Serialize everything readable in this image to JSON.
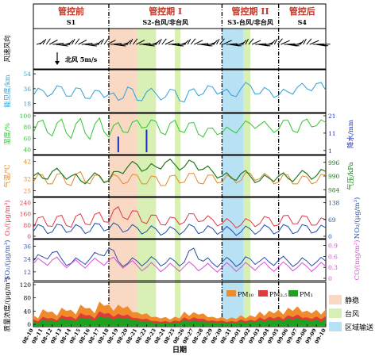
{
  "periods": [
    {
      "title": "管控前",
      "code": "S1",
      "start": 0,
      "end": 8
    },
    {
      "title": "管控期 I",
      "code": "S2-台风/非台风",
      "start": 8,
      "end": 20
    },
    {
      "title": "管控期 II",
      "code": "S3-台风/非台风",
      "start": 20,
      "end": 26
    },
    {
      "title": "管控后",
      "code": "S4",
      "start": 26,
      "end": 31
    }
  ],
  "shading": [
    {
      "type": "calm",
      "start": 8,
      "end": 11
    },
    {
      "type": "typhoon",
      "start": 11,
      "end": 13
    },
    {
      "type": "typhoon",
      "start": 15,
      "end": 15.6
    },
    {
      "type": "regional",
      "start": 20,
      "end": 22.3
    },
    {
      "type": "typhoon",
      "start": 22.3,
      "end": 23
    }
  ],
  "colors": {
    "calm": "#fad9c4",
    "typhoon": "#d9f0b4",
    "regional": "#b8e2f4",
    "wind": "#000000",
    "visibility": "#2f9fd8",
    "humidity": "#2ec72e",
    "rain": "#1a2fbf",
    "temp": "#e08a2a",
    "pressure": "#1f7a1f",
    "o3": "#e0374a",
    "no2": "#1f4fae",
    "so2": "#2b4ea8",
    "co": "#d94fd6",
    "pm10": "#f08a2a",
    "pm25": "#e03a3a",
    "pm1": "#1fa21f"
  },
  "panel_labels": {
    "wind": "风速风向",
    "wind_ref": "北风 5m/s",
    "visibility": "能见度/km",
    "humidity": "湿度/%",
    "rain": "降水/mm",
    "temp": "气温/℃",
    "pressure": "气压/kPa",
    "o3": "O₃/(μg/m³)",
    "no2": "NO₂/(μg/m³)",
    "so2": "SO₂/(μg/m³)",
    "co": "CO/(mg/m³)",
    "pm": "质量浓度/(μg/m³)",
    "xlabel": "日期"
  },
  "legend_pm": [
    "PM₁₀",
    "PM₂.₅",
    "PM₁"
  ],
  "legend_shading": [
    "静稳",
    "台风",
    "区域输送"
  ],
  "chart_data": [
    {
      "type": "line",
      "panel": "visibility",
      "ylabel": "能见度/km",
      "yticks": [
        18,
        36,
        54
      ],
      "ylim": [
        10,
        56
      ],
      "series": [
        {
          "name": "visibility",
          "values": [
            28,
            34,
            30,
            38,
            27,
            36,
            24,
            33,
            29,
            22,
            38,
            22,
            32,
            30,
            26,
            34,
            20,
            36,
            30,
            38,
            32,
            28,
            36,
            40,
            30,
            34,
            28,
            32,
            38,
            36,
            42,
            34
          ]
        }
      ]
    },
    {
      "type": "line",
      "panel": "humidity",
      "ylabel": "湿度/%",
      "yticks": [
        40,
        60,
        80,
        100
      ],
      "ylim": [
        35,
        100
      ],
      "series": [
        {
          "name": "humidity",
          "values": [
            70,
            92,
            64,
            94,
            60,
            95,
            58,
            96,
            62,
            88,
            70,
            92,
            80,
            90,
            66,
            92,
            70,
            88,
            62,
            78,
            70,
            74,
            80,
            86,
            84,
            80,
            76,
            92,
            70,
            94,
            82,
            88
          ]
        }
      ]
    },
    {
      "type": "bar",
      "panel": "rain",
      "ylabel": "降水/mm",
      "yticks": [
        1,
        11,
        21
      ],
      "ylim": [
        0,
        21
      ],
      "series": [
        {
          "name": "rain",
          "values": [
            0,
            0,
            0,
            0,
            0,
            0,
            0,
            0,
            0,
            9,
            0,
            0,
            13,
            0,
            0,
            0,
            0,
            0,
            0,
            0,
            0,
            0,
            0,
            0,
            0,
            0,
            0,
            0,
            0,
            0,
            0,
            0
          ]
        }
      ]
    },
    {
      "type": "line",
      "panel": "temp",
      "ylabel": "气温/℃",
      "yticks": [
        25,
        32,
        42
      ],
      "ylim": [
        23,
        44
      ],
      "series": [
        {
          "name": "temp",
          "values": [
            30,
            34,
            29,
            35,
            28,
            36,
            29,
            34,
            31,
            33,
            30,
            34,
            29,
            33,
            28,
            34,
            30,
            35,
            29,
            34,
            30,
            33,
            31,
            35,
            32,
            33,
            30,
            34,
            29,
            33,
            30,
            34
          ]
        }
      ]
    },
    {
      "type": "line",
      "panel": "pressure",
      "ylabel": "气压/kPa",
      "yticks": [
        984,
        990,
        996
      ],
      "ylim": [
        982,
        998
      ],
      "series": [
        {
          "name": "pressure",
          "values": [
            990,
            989,
            992,
            991,
            990,
            988,
            989,
            990,
            988,
            992,
            994,
            995,
            993,
            994,
            996,
            995,
            994,
            996,
            993,
            992,
            990,
            989,
            991,
            990,
            988,
            989,
            990,
            989,
            990,
            991,
            990,
            992
          ]
        }
      ]
    },
    {
      "type": "line",
      "panel": "o3",
      "ylabel": "O₃/(μg/m³)",
      "yticks": [
        0,
        80,
        160,
        240
      ],
      "ylim": [
        0,
        260
      ],
      "series": [
        {
          "name": "o3",
          "values": [
            60,
            140,
            70,
            150,
            65,
            160,
            80,
            170,
            100,
            210,
            120,
            180,
            90,
            150,
            80,
            130,
            100,
            160,
            110,
            120,
            90,
            100,
            80,
            110,
            90,
            130,
            80,
            150,
            90,
            140,
            80,
            120
          ]
        }
      ]
    },
    {
      "type": "line",
      "panel": "no2",
      "ylabel": "NO₂/(μg/m³)",
      "yticks": [
        0,
        69,
        138
      ],
      "ylim": [
        0,
        150
      ],
      "series": [
        {
          "name": "no2",
          "values": [
            20,
            40,
            18,
            45,
            22,
            38,
            20,
            50,
            30,
            45,
            25,
            35,
            20,
            30,
            15,
            28,
            22,
            40,
            18,
            32,
            20,
            25,
            18,
            30,
            22,
            35,
            20,
            40,
            18,
            42,
            20,
            35
          ]
        }
      ]
    },
    {
      "type": "line",
      "panel": "so2",
      "ylabel": "SO₂/(μg/m³)",
      "yticks": [
        12,
        24,
        36
      ],
      "ylim": [
        6,
        40
      ],
      "series": [
        {
          "name": "so2",
          "values": [
            22,
            26,
            30,
            24,
            20,
            22,
            24,
            28,
            34,
            22,
            20,
            22,
            21,
            23,
            20,
            22,
            21,
            34,
            22,
            20,
            21,
            22,
            20,
            24,
            22,
            21,
            23,
            22,
            20,
            22,
            21,
            22
          ]
        }
      ]
    },
    {
      "type": "line",
      "panel": "co",
      "ylabel": "CO/(mg/m³)",
      "yticks": [
        0.0,
        0.3,
        0.6,
        0.9
      ],
      "ylim": [
        0,
        1.0
      ],
      "series": [
        {
          "name": "co",
          "values": [
            0.4,
            0.45,
            0.5,
            0.42,
            0.4,
            0.38,
            0.42,
            0.45,
            0.5,
            0.42,
            0.38,
            0.35,
            0.3,
            0.32,
            0.28,
            0.3,
            0.32,
            0.35,
            0.3,
            0.28,
            0.3,
            0.32,
            0.3,
            0.33,
            0.35,
            0.3,
            0.32,
            0.34,
            0.3,
            0.32,
            0.3,
            0.33
          ]
        }
      ]
    },
    {
      "type": "area",
      "panel": "pm",
      "ylabel": "质量浓度/(μg/m³)",
      "yticks": [
        0,
        40,
        80,
        120
      ],
      "ylim": [
        0,
        120
      ],
      "categories": [
        "08-10",
        "08-11",
        "08-12",
        "08-13",
        "08-14",
        "08-15",
        "08-16",
        "08-17",
        "08-18",
        "08-19",
        "08-20",
        "08-21",
        "08-22",
        "08-23",
        "08-24",
        "08-25",
        "08-26",
        "08-27",
        "08-28",
        "08-29",
        "08-30",
        "08-31",
        "09-01",
        "09-02",
        "09-03",
        "09-04",
        "09-05",
        "09-06",
        "09-07",
        "09-08",
        "09-09",
        "09-10"
      ],
      "series": [
        {
          "name": "PM₁₀",
          "values": [
            30,
            55,
            40,
            60,
            45,
            70,
            50,
            80,
            60,
            70,
            55,
            45,
            35,
            30,
            25,
            30,
            40,
            45,
            35,
            30,
            25,
            28,
            30,
            35,
            40,
            50,
            45,
            60,
            55,
            50,
            45,
            55
          ]
        },
        {
          "name": "PM₂.₅",
          "values": [
            18,
            30,
            22,
            35,
            26,
            42,
            30,
            48,
            36,
            40,
            32,
            26,
            20,
            16,
            14,
            18,
            24,
            28,
            20,
            18,
            15,
            16,
            18,
            20,
            24,
            30,
            26,
            35,
            32,
            28,
            26,
            32
          ]
        },
        {
          "name": "PM₁",
          "values": [
            12,
            20,
            15,
            24,
            18,
            28,
            20,
            32,
            24,
            28,
            22,
            18,
            14,
            10,
            9,
            12,
            16,
            18,
            13,
            12,
            10,
            11,
            12,
            14,
            16,
            20,
            18,
            24,
            22,
            19,
            17,
            22
          ]
        }
      ]
    }
  ]
}
